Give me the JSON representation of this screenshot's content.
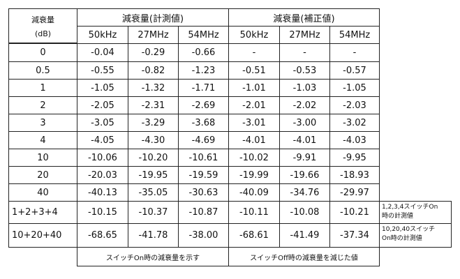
{
  "header": {
    "attenuation_label": "減衰量",
    "attenuation_unit": "(dB)",
    "measured_group": "減衰量(計測値)",
    "corrected_group": "減衰量(補正値)",
    "freqs": [
      "50kHz",
      "27MHz",
      "54MHz",
      "50kHz",
      "27MHz",
      "54MHz"
    ]
  },
  "rows": [
    {
      "label": "0",
      "vals": [
        "-0.04",
        "-0.29",
        "-0.66",
        "-",
        "-",
        "-"
      ]
    },
    {
      "label": "0.5",
      "vals": [
        "-0.55",
        "-0.82",
        "-1.23",
        "-0.51",
        "-0.53",
        "-0.57"
      ]
    },
    {
      "label": "1",
      "vals": [
        "-1.05",
        "-1.32",
        "-1.71",
        "-1.01",
        "-1.03",
        "-1.05"
      ]
    },
    {
      "label": "2",
      "vals": [
        "-2.05",
        "-2.31",
        "-2.69",
        "-2.01",
        "-2.02",
        "-2.03"
      ]
    },
    {
      "label": "3",
      "vals": [
        "-3.05",
        "-3.29",
        "-3.68",
        "-3.01",
        "-3.00",
        "-3.02"
      ]
    },
    {
      "label": "4",
      "vals": [
        "-4.05",
        "-4.30",
        "-4.69",
        "-4.01",
        "-4.01",
        "-4.03"
      ]
    },
    {
      "label": "10",
      "vals": [
        "-10.06",
        "-10.20",
        "-10.61",
        "-10.02",
        "-9.91",
        "-9.95"
      ]
    },
    {
      "label": "20",
      "vals": [
        "-20.03",
        "-19.95",
        "-19.59",
        "-19.99",
        "-19.66",
        "-18.93"
      ]
    },
    {
      "label": "40",
      "vals": [
        "-40.13",
        "-35.05",
        "-30.63",
        "-40.09",
        "-34.76",
        "-29.97"
      ]
    },
    {
      "label": "1+2+3+4",
      "vals": [
        "-10.15",
        "-10.37",
        "-10.87",
        "-10.11",
        "-10.08",
        "-10.21"
      ]
    },
    {
      "label": "10+20+40",
      "vals": [
        "-68.65",
        "-41.78",
        "-38.00",
        "-68.61",
        "-41.49",
        "-37.34"
      ]
    }
  ],
  "notes": {
    "row10_line1": "1,2,3,4スイッチOn",
    "row10_line2": "時の計測値",
    "row11_line1": "10,20,40スイッチ",
    "row11_line2": "On時の計測値"
  },
  "footer": {
    "measured_note": "スイッチOn時の減衰量を示す",
    "corrected_note": "スイッチOff時の減衰量を減じた値"
  }
}
